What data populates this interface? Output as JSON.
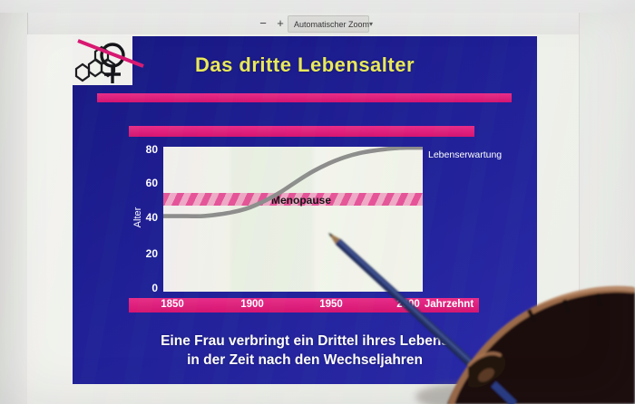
{
  "viewer": {
    "toolbar": {
      "zoom_out": "−",
      "zoom_in": "+",
      "zoom_mode": "Automatischer Zoom"
    }
  },
  "icons": {
    "chevron_down": "▾",
    "logo": "venus-symbol-with-steroid-rings-and-pink-slash",
    "pointer": "blue-pencil-held-by-hand"
  },
  "slide": {
    "title": "Das dritte Lebensalter",
    "footer": {
      "line1": "Eine Frau verbringt ein Drittel ihres Lebens",
      "line2": "in der Zeit nach den Wechseljahren"
    }
  },
  "chart_data": {
    "type": "line",
    "title": "",
    "xlabel": "Jahrzehnt",
    "ylabel": "Alter",
    "x": [
      1850,
      1860,
      1870,
      1880,
      1890,
      1900,
      1910,
      1920,
      1930,
      1940,
      1950,
      1960,
      1970,
      1980,
      1990,
      2000
    ],
    "series": [
      {
        "name": "Lebenserwartung",
        "values": [
          42,
          42,
          42,
          43,
          44.5,
          47,
          51,
          56,
          62,
          67.5,
          72,
          75.5,
          78,
          79.5,
          80.5,
          81
        ]
      }
    ],
    "xticks": [
      "1850",
      "1900",
      "1950",
      "2000"
    ],
    "yticks": [
      "0",
      "20",
      "40",
      "60",
      "80"
    ],
    "xlim": [
      1845,
      2008
    ],
    "ylim": [
      0,
      82
    ],
    "grid": false,
    "legend_position": "right-of-plot",
    "annotations": [
      {
        "label": "Menopause",
        "type": "horizontal-band",
        "y_range": [
          48,
          55
        ]
      }
    ]
  },
  "colors": {
    "slide_bg": "#1c1c94",
    "title_yellow": "#e9e957",
    "magenta_bar": "#dd1677",
    "plot_bg": "#eff1e6",
    "curve_gray": "#8c8c8a",
    "menopause_band": "#e25a9c",
    "footer_text": "#ffffff",
    "pencil_blue": "#2b3c7e"
  }
}
